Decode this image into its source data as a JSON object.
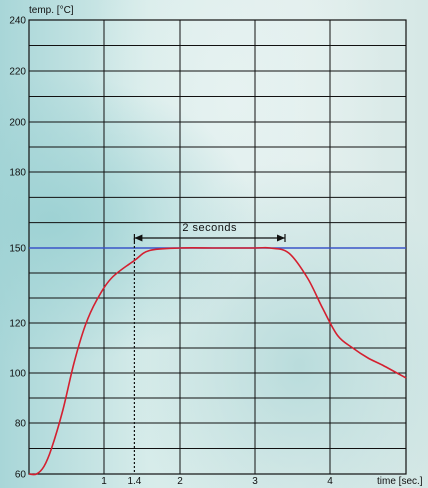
{
  "chart_data": {
    "type": "line",
    "title": "",
    "ylabel": "temp. [°C]",
    "xlabel": "time [sec.]",
    "xlim": [
      0,
      5
    ],
    "ylim": [
      60,
      240
    ],
    "y_ticks": [
      60,
      80,
      100,
      120,
      150,
      180,
      200,
      220,
      240
    ],
    "x_ticks": [
      {
        "value": 1,
        "label": "1"
      },
      {
        "value": 1.4,
        "label": "1.4"
      },
      {
        "value": 2,
        "label": "2"
      },
      {
        "value": 3,
        "label": "3"
      },
      {
        "value": 4,
        "label": "4"
      }
    ],
    "grid": true,
    "series": [
      {
        "color": "#d42030",
        "x": [
          0,
          0.1,
          0.2,
          0.3,
          0.45,
          0.6,
          0.75,
          0.9,
          1.1,
          1.4,
          1.6,
          2.0,
          2.5,
          3.0,
          3.2,
          3.45,
          3.7,
          3.9,
          4.1,
          4.3,
          4.5,
          4.7,
          5.0
        ],
        "y": [
          60,
          60,
          63,
          70,
          85,
          104,
          119,
          129,
          138,
          145,
          149,
          150,
          150,
          150,
          150,
          148,
          138,
          126,
          115,
          110,
          106,
          103,
          98
        ]
      }
    ],
    "reference_line": {
      "y": 150,
      "color": "#3a55c8"
    },
    "dotted_marker": {
      "x": 1.4
    },
    "annotation": {
      "text": "2 seconds",
      "x_start": 1.4,
      "x_end": 3.4
    }
  },
  "colors": {
    "grid": "#111111",
    "curve": "#d42030",
    "reference": "#3a55c8"
  }
}
